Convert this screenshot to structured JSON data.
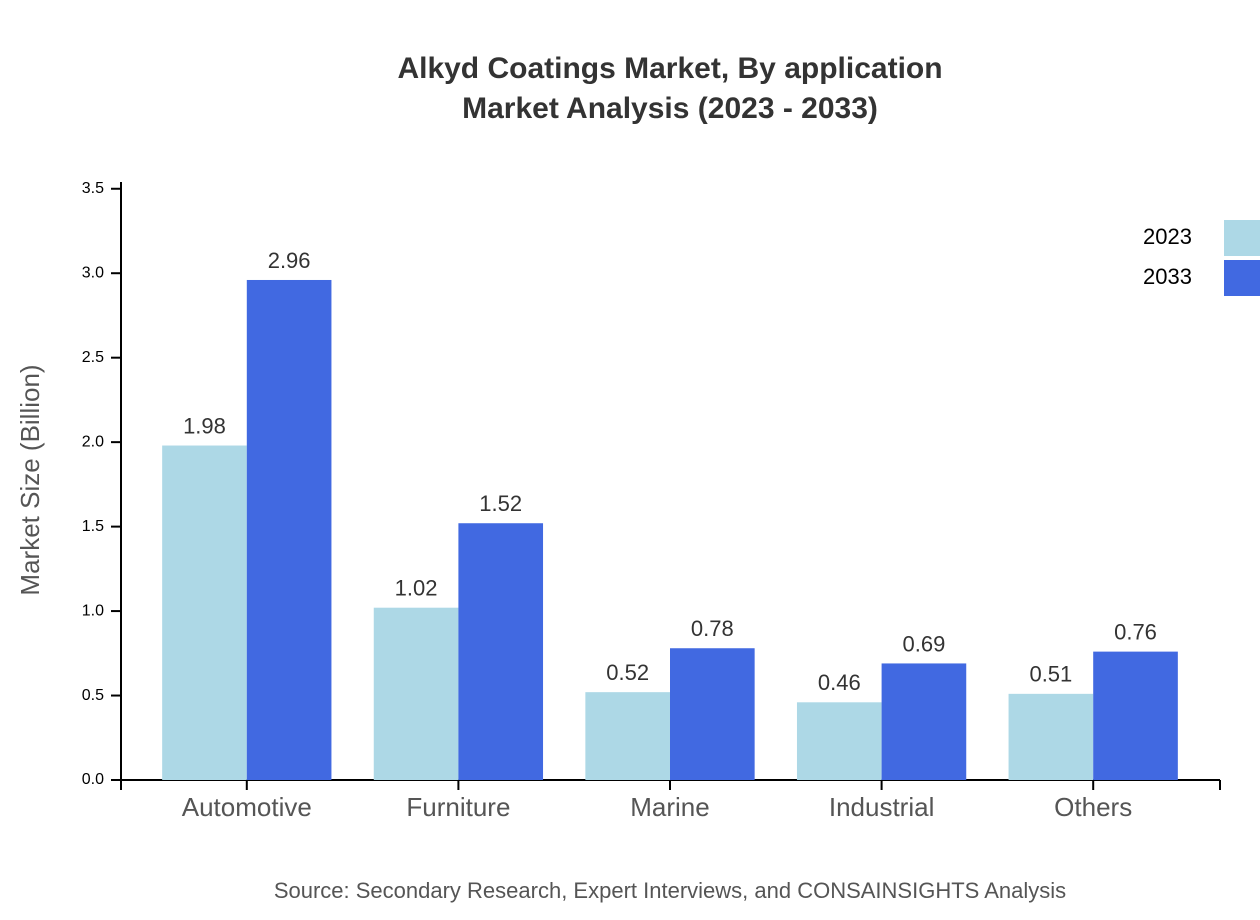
{
  "chart_data": {
    "type": "bar",
    "title": "Alkyd Coatings Market, By application",
    "subtitle": "Market Analysis (2023 - 2033)",
    "y_label": "Market Size (Billion)",
    "source": "Source: Secondary Research, Expert Interviews, and CONSAINSIGHTS Analysis",
    "categories": [
      "Automotive",
      "Furniture",
      "Marine",
      "Industrial",
      "Others"
    ],
    "series": [
      {
        "name": "2023",
        "color": "#add8e6",
        "values": [
          1.98,
          1.02,
          0.52,
          0.46,
          0.51
        ]
      },
      {
        "name": "2033",
        "color": "#4169e1",
        "values": [
          2.96,
          1.52,
          0.78,
          0.69,
          0.76
        ]
      }
    ],
    "ylim": [
      0,
      3.54
    ],
    "yticks": [
      {
        "value": 0,
        "label": "0.0"
      },
      0.5,
      {
        "value": 1,
        "label": "1.0"
      },
      1.5,
      {
        "value": 2,
        "label": "2.0"
      },
      2.5,
      {
        "value": 3,
        "label": "3.0"
      },
      3.5
    ],
    "legend": "top-right"
  }
}
